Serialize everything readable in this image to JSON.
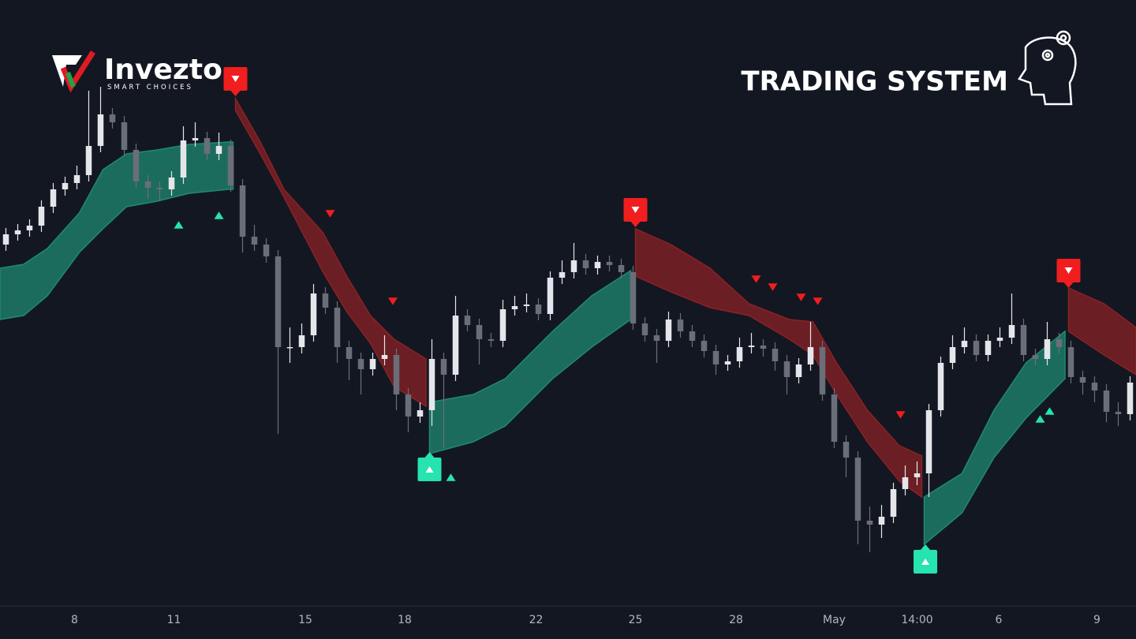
{
  "branding": {
    "name": "Invezto",
    "tagline": "SMART CHOICES"
  },
  "chart_data": {
    "type": "candlestick",
    "title": "TRADING SYSTEM",
    "xlim": [
      -0.5,
      95.5
    ],
    "ylim": [
      0,
      700
    ],
    "xticks": [
      {
        "value": 5.8,
        "label": "8"
      },
      {
        "value": 14.2,
        "label": "11"
      },
      {
        "value": 25.3,
        "label": "15"
      },
      {
        "value": 33.7,
        "label": "18"
      },
      {
        "value": 44.8,
        "label": "22"
      },
      {
        "value": 53.2,
        "label": "25"
      },
      {
        "value": 61.7,
        "label": "28"
      },
      {
        "value": 70,
        "label": "May"
      },
      {
        "value": 77,
        "label": "14:00"
      },
      {
        "value": 83.9,
        "label": "6"
      },
      {
        "value": 92.2,
        "label": "9"
      }
    ],
    "up_color": "#e4e6ea",
    "down_color": "#6a6e78",
    "open": [
      490,
      503,
      508,
      514,
      538,
      560,
      568,
      578,
      615,
      655,
      645,
      610,
      570,
      562,
      560,
      575,
      622,
      625,
      605,
      615,
      565,
      500,
      490,
      475,
      360,
      360,
      375,
      428,
      410,
      360,
      345,
      332,
      345,
      350,
      300,
      272,
      280,
      345,
      325,
      400,
      388,
      370,
      368,
      408,
      412,
      414,
      402,
      448,
      455,
      470,
      460,
      468,
      464,
      455,
      390,
      375,
      368,
      395,
      380,
      368,
      355,
      338,
      342,
      360,
      362,
      358,
      342,
      322,
      338,
      360,
      300,
      240,
      220,
      140,
      135,
      145,
      180,
      195,
      200,
      280,
      340,
      360,
      368,
      350,
      368,
      372,
      388,
      350,
      345,
      370,
      360,
      322,
      315,
      305,
      278,
      275
    ],
    "high": [
      511,
      516,
      522,
      546,
      568,
      576,
      590,
      685,
      690,
      663,
      653,
      618,
      578,
      570,
      583,
      640,
      645,
      633,
      632,
      623,
      573,
      515,
      498,
      483,
      385,
      390,
      440,
      436,
      418,
      368,
      353,
      353,
      375,
      358,
      308,
      290,
      370,
      353,
      425,
      408,
      396,
      378,
      420,
      425,
      428,
      422,
      456,
      470,
      492,
      478,
      476,
      476,
      472,
      463,
      398,
      383,
      405,
      403,
      388,
      376,
      363,
      350,
      372,
      378,
      370,
      366,
      350,
      346,
      392,
      368,
      308,
      248,
      228,
      158,
      160,
      188,
      210,
      215,
      288,
      348,
      375,
      385,
      376,
      376,
      385,
      428,
      396,
      358,
      392,
      378,
      368,
      330,
      323,
      313,
      290,
      323
    ],
    "low": [
      482,
      495,
      500,
      506,
      530,
      552,
      560,
      570,
      607,
      637,
      602,
      562,
      548,
      545,
      552,
      567,
      614,
      597,
      597,
      557,
      480,
      482,
      467,
      250,
      340,
      352,
      367,
      402,
      340,
      318,
      300,
      324,
      337,
      280,
      252,
      264,
      260,
      232,
      317,
      380,
      338,
      360,
      360,
      400,
      404,
      394,
      394,
      440,
      447,
      452,
      452,
      456,
      447,
      382,
      367,
      340,
      360,
      372,
      360,
      347,
      325,
      330,
      334,
      352,
      348,
      330,
      300,
      314,
      330,
      292,
      232,
      195,
      110,
      100,
      118,
      137,
      172,
      185,
      170,
      272,
      332,
      352,
      342,
      342,
      360,
      364,
      342,
      337,
      337,
      352,
      314,
      300,
      290,
      265,
      260,
      267
    ],
    "close": [
      503,
      508,
      514,
      538,
      560,
      568,
      578,
      615,
      655,
      645,
      610,
      570,
      562,
      560,
      575,
      622,
      625,
      605,
      615,
      565,
      500,
      490,
      475,
      360,
      360,
      375,
      428,
      410,
      360,
      345,
      332,
      345,
      350,
      300,
      272,
      280,
      345,
      325,
      400,
      388,
      370,
      368,
      408,
      412,
      414,
      402,
      448,
      455,
      470,
      460,
      468,
      464,
      455,
      390,
      375,
      368,
      395,
      380,
      368,
      355,
      338,
      342,
      360,
      362,
      358,
      342,
      322,
      338,
      360,
      300,
      240,
      220,
      140,
      135,
      145,
      180,
      195,
      200,
      280,
      340,
      360,
      368,
      350,
      368,
      372,
      388,
      350,
      345,
      370,
      360,
      322,
      315,
      305,
      278,
      275,
      315
    ],
    "bands": [
      {
        "color": "#1f8a70",
        "x": [
          -0.5,
          1.5,
          3.5,
          6.2,
          8.2,
          10.2,
          12.8,
          15.5,
          18.8,
          19.2
        ],
        "upper": [
          460,
          465,
          485,
          530,
          585,
          605,
          610,
          617,
          620,
          620
        ],
        "lower": [
          395,
          400,
          425,
          480,
          510,
          538,
          545,
          555,
          560,
          560
        ]
      },
      {
        "color": "#8a2226",
        "x": [
          19.4,
          21.5,
          23.5,
          26.8,
          28.8,
          30.8,
          32.8,
          35.5
        ],
        "upper": [
          675,
          620,
          560,
          505,
          450,
          400,
          370,
          345
        ],
        "lower": [
          660,
          605,
          550,
          455,
          405,
          365,
          310,
          285
        ]
      },
      {
        "color": "#1f8a70",
        "x": [
          35.8,
          39.5,
          42.2,
          46.2,
          49.5,
          52.8
        ],
        "upper": [
          290,
          300,
          320,
          380,
          425,
          457
        ],
        "lower": [
          225,
          240,
          260,
          320,
          360,
          395
        ]
      },
      {
        "color": "#8a2226",
        "x": [
          53.2,
          56.2,
          59.5,
          62.8,
          66.2,
          68.2,
          70.2,
          72.8,
          75.5,
          77.4
        ],
        "upper": [
          510,
          490,
          460,
          415,
          395,
          392,
          340,
          280,
          235,
          222
        ],
        "lower": [
          450,
          430,
          410,
          400,
          370,
          350,
          300,
          240,
          190,
          170
        ]
      },
      {
        "color": "#1f8a70",
        "x": [
          77.6,
          80.8,
          83.5,
          86.2,
          89.5
        ],
        "upper": [
          170,
          200,
          280,
          340,
          380
        ],
        "lower": [
          110,
          150,
          220,
          270,
          320
        ]
      },
      {
        "color": "#8a2226",
        "x": [
          89.8,
          92.8,
          95.5
        ],
        "upper": [
          435,
          415,
          385
        ],
        "lower": [
          380,
          350,
          325
        ]
      }
    ],
    "buy_labels": {
      "color": "#26e3b0",
      "x": [
        35.8,
        77.7
      ],
      "y": [
        205,
        88
      ]
    },
    "sell_labels": {
      "color": "#f01e1e",
      "x": [
        19.4,
        53.2,
        89.8
      ],
      "y": [
        700,
        534,
        457
      ]
    },
    "buy_arrows": {
      "color": "#26e3b0",
      "x": [
        14.6,
        18.0,
        37.6,
        87.4,
        88.2
      ],
      "y": [
        515,
        527,
        195,
        269,
        279
      ]
    },
    "sell_arrows": {
      "color": "#f01e1e",
      "x": [
        27.4,
        32.7,
        63.4,
        64.8,
        67.2,
        68.6,
        75.6
      ],
      "y": [
        529,
        418,
        446,
        436,
        423,
        418,
        274
      ]
    }
  }
}
